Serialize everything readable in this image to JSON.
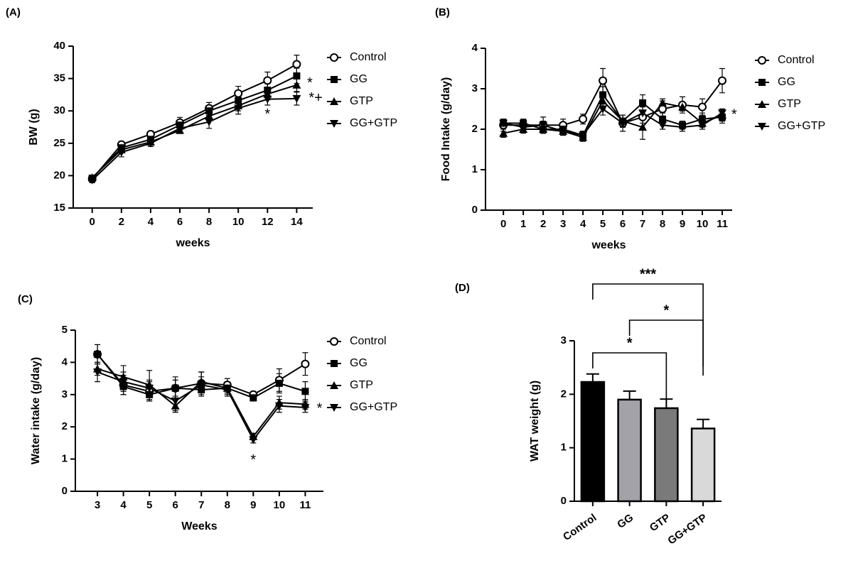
{
  "chart_data": [
    {
      "type": "line",
      "panel_label": "(A)",
      "xlabel": "weeks",
      "ylabel": "BW (g)",
      "x": [
        0,
        2,
        4,
        6,
        8,
        10,
        12,
        14
      ],
      "xlim": [
        -1.3,
        15.1
      ],
      "xticks": [
        0,
        2,
        4,
        6,
        8,
        10,
        12,
        14
      ],
      "ylim": [
        15,
        40
      ],
      "yticks": [
        15,
        20,
        25,
        30,
        35,
        40
      ],
      "series": [
        {
          "name": "Control",
          "marker": "circle-open",
          "color": "#000000",
          "values": [
            19.5,
            24.8,
            26.4,
            28.2,
            30.4,
            32.7,
            34.7,
            37.2
          ],
          "errors": [
            0.4,
            0.5,
            0.5,
            0.8,
            0.9,
            1.1,
            1.3,
            1.4
          ]
        },
        {
          "name": "GG",
          "marker": "square",
          "color": "#000000",
          "values": [
            19.6,
            24.3,
            25.6,
            27.8,
            30.0,
            31.6,
            33.2,
            35.4
          ],
          "errors": [
            0.4,
            0.5,
            0.6,
            0.7,
            0.8,
            0.9,
            1.0,
            1.2
          ]
        },
        {
          "name": "GTP",
          "marker": "triangle-up",
          "color": "#000000",
          "values": [
            19.7,
            24.0,
            25.2,
            27.0,
            29.2,
            30.8,
            32.6,
            34.0
          ],
          "errors": [
            0.4,
            0.5,
            0.5,
            0.5,
            0.6,
            0.8,
            0.9,
            1.0
          ]
        },
        {
          "name": "GG+GTP",
          "marker": "triangle-down",
          "color": "#000000",
          "values": [
            19.3,
            23.6,
            25.0,
            27.3,
            28.3,
            30.4,
            31.8,
            31.9
          ],
          "errors": [
            0.4,
            0.7,
            0.5,
            0.6,
            1.0,
            0.9,
            0.9,
            1.0
          ]
        }
      ],
      "annotations": [
        {
          "text": "*",
          "x": 14.9,
          "y": 34.2
        },
        {
          "text": "*+",
          "x": 15.3,
          "y": 31.9
        },
        {
          "text": "*",
          "x": 12,
          "y": 29.4
        }
      ]
    },
    {
      "type": "line",
      "panel_label": "(B)",
      "xlabel": "weeks",
      "ylabel": "Food  Intake (g/day)",
      "x": [
        0,
        1,
        2,
        3,
        4,
        5,
        6,
        7,
        8,
        9,
        10,
        11
      ],
      "xlim": [
        -0.9,
        11.5
      ],
      "xticks": [
        0,
        1,
        2,
        3,
        4,
        5,
        6,
        7,
        8,
        9,
        10,
        11
      ],
      "ylim": [
        0,
        4
      ],
      "yticks": [
        0,
        1,
        2,
        3,
        4
      ],
      "series": [
        {
          "name": "Control",
          "marker": "circle-open",
          "color": "#000000",
          "values": [
            2.1,
            2.1,
            2.1,
            2.1,
            2.25,
            3.2,
            2.15,
            2.3,
            2.5,
            2.6,
            2.55,
            3.2
          ],
          "errors": [
            0.15,
            0.1,
            0.2,
            0.15,
            0.12,
            0.3,
            0.2,
            0.15,
            0.2,
            0.2,
            0.2,
            0.3
          ]
        },
        {
          "name": "GG",
          "marker": "square",
          "color": "#000000",
          "values": [
            2.15,
            2.15,
            2.0,
            2.0,
            1.85,
            2.85,
            2.2,
            2.65,
            2.25,
            2.1,
            2.25,
            2.3
          ],
          "errors": [
            0.1,
            0.1,
            0.1,
            0.1,
            0.1,
            0.2,
            0.15,
            0.2,
            0.15,
            0.1,
            0.15,
            0.15
          ]
        },
        {
          "name": "GTP",
          "marker": "triangle-up",
          "color": "#000000",
          "values": [
            1.9,
            2.0,
            2.0,
            1.95,
            1.8,
            2.7,
            2.2,
            2.05,
            2.65,
            2.55,
            2.15,
            2.35
          ],
          "errors": [
            0.1,
            0.1,
            0.1,
            0.1,
            0.1,
            0.2,
            0.15,
            0.3,
            0.1,
            0.1,
            0.1,
            0.15
          ]
        },
        {
          "name": "GG+GTP",
          "marker": "triangle-down",
          "color": "#000000",
          "values": [
            2.15,
            2.05,
            2.1,
            1.95,
            1.85,
            2.5,
            2.15,
            2.4,
            2.1,
            2.05,
            2.1,
            2.4
          ],
          "errors": [
            0.1,
            0.1,
            0.1,
            0.1,
            0.1,
            0.15,
            0.1,
            0.15,
            0.1,
            0.1,
            0.1,
            0.1
          ]
        }
      ],
      "annotations": [
        {
          "text": "*",
          "x": 11.6,
          "y": 2.35
        }
      ]
    },
    {
      "type": "line",
      "panel_label": "(C)",
      "xlabel": "Weeks",
      "ylabel": "Water intake (g/day)",
      "x": [
        3,
        4,
        5,
        6,
        7,
        8,
        9,
        10,
        11
      ],
      "xlim": [
        2.15,
        11.7
      ],
      "xticks": [
        3,
        4,
        5,
        6,
        7,
        8,
        9,
        10,
        11
      ],
      "ylim": [
        0,
        5
      ],
      "yticks": [
        0,
        1,
        2,
        3,
        4,
        5
      ],
      "series": [
        {
          "name": "Control",
          "marker": "circle-open",
          "color": "#000000",
          "values": [
            4.25,
            3.3,
            3.1,
            3.2,
            3.35,
            3.3,
            3.0,
            3.45,
            3.95
          ],
          "errors": [
            0.3,
            0.3,
            0.3,
            0.35,
            0.35,
            0.2,
            0.1,
            0.35,
            0.35
          ]
        },
        {
          "name": "GG",
          "marker": "square",
          "color": "#000000",
          "values": [
            4.25,
            3.25,
            3.0,
            3.2,
            3.15,
            3.2,
            2.9,
            3.35,
            3.1
          ],
          "errors": [
            0.3,
            0.25,
            0.2,
            0.25,
            0.2,
            0.15,
            0.1,
            0.3,
            0.3
          ]
        },
        {
          "name": "GTP",
          "marker": "triangle-up",
          "color": "#000000",
          "values": [
            3.8,
            3.55,
            3.3,
            2.65,
            3.4,
            3.2,
            1.7,
            2.75,
            2.7
          ],
          "errors": [
            0.2,
            0.35,
            0.45,
            0.2,
            0.3,
            0.2,
            0.1,
            0.2,
            0.15
          ]
        },
        {
          "name": "GG+GTP",
          "marker": "triangle-down",
          "color": "#000000",
          "values": [
            3.7,
            3.4,
            3.2,
            2.8,
            3.3,
            3.15,
            1.6,
            2.65,
            2.6
          ],
          "errors": [
            0.3,
            0.3,
            0.25,
            0.3,
            0.25,
            0.2,
            0.1,
            0.2,
            0.15
          ]
        }
      ],
      "annotations": [
        {
          "text": "*",
          "x": 9,
          "y": 0.95
        },
        {
          "text": "*",
          "x": 11.55,
          "y": 2.55
        }
      ]
    },
    {
      "type": "bar",
      "panel_label": "(D)",
      "ylabel": "WAT weight (g)",
      "categories": [
        "Control",
        "GG",
        "GTP",
        "GG+GTP"
      ],
      "values": [
        2.23,
        1.9,
        1.74,
        1.36
      ],
      "errors": [
        0.15,
        0.16,
        0.17,
        0.17
      ],
      "colors": [
        "#000000",
        "#a2a2a8",
        "#7a7a7a",
        "#d9d9d9"
      ],
      "ylim": [
        0,
        3
      ],
      "yticks": [
        0,
        1,
        2,
        3
      ],
      "brackets": [
        {
          "from": 0,
          "to": 3,
          "label": "***"
        },
        {
          "from": 1,
          "to": 3,
          "label": "*"
        },
        {
          "from": 0,
          "to": 2,
          "label": "*"
        }
      ]
    }
  ]
}
